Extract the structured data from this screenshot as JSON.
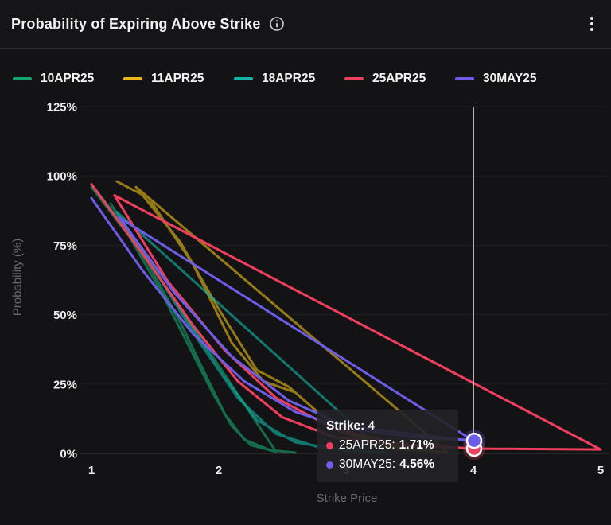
{
  "header": {
    "title": "Probability of Expiring Above Strike",
    "icons": {
      "info": "info-circle",
      "menu": "kebab-vertical"
    }
  },
  "chart_data": {
    "type": "line",
    "title": "Probability of Expiring Above Strike",
    "xlabel": "Strike Price",
    "ylabel": "Probability (%)",
    "xlim": [
      1,
      5
    ],
    "ylim": [
      0,
      125
    ],
    "xticks": [
      1,
      2,
      3,
      4,
      5
    ],
    "yticks": [
      0,
      25,
      50,
      75,
      100,
      125
    ],
    "ytick_suffix": "%",
    "grid": "horizontal",
    "legend_position": "top",
    "colors": {
      "grid": "#202024",
      "zero_line": "#3c3c40",
      "crosshair": "#e9e9e9",
      "tick_text": "#ececec"
    },
    "series": [
      {
        "name": "10APR25",
        "color": "#15a36c",
        "dim": true,
        "points": [
          [
            1,
            96
          ],
          [
            1.3,
            78
          ],
          [
            1.55,
            58
          ],
          [
            1.75,
            40
          ],
          [
            1.95,
            22
          ],
          [
            2.1,
            10
          ],
          [
            2.25,
            3
          ],
          [
            2.45,
            0.6
          ],
          [
            1.15,
            90
          ],
          [
            1.45,
            68
          ],
          [
            1.7,
            47
          ],
          [
            1.9,
            28
          ],
          [
            2.05,
            14
          ],
          [
            2.2,
            5
          ],
          [
            2.4,
            1.2
          ],
          [
            2.6,
            0.3
          ]
        ]
      },
      {
        "name": "11APR25",
        "color": "#e6ba17",
        "dim": true,
        "points": [
          [
            1.2,
            98
          ],
          [
            1.45,
            92
          ],
          [
            1.8,
            68
          ],
          [
            2.1,
            40
          ],
          [
            2.35,
            26
          ],
          [
            2.6,
            22
          ],
          [
            2.95,
            8
          ],
          [
            3.4,
            1.5
          ],
          [
            3.8,
            0.4
          ],
          [
            1.35,
            96
          ],
          [
            1.7,
            76
          ],
          [
            2,
            52
          ],
          [
            2.3,
            30
          ],
          [
            2.55,
            24
          ],
          [
            2.85,
            12
          ],
          [
            3.2,
            4
          ],
          [
            3.6,
            0.8
          ]
        ]
      },
      {
        "name": "18APR25",
        "color": "#12b5a5",
        "dim": true,
        "points": [
          [
            1,
            97
          ],
          [
            1.35,
            76
          ],
          [
            1.7,
            52
          ],
          [
            2,
            30
          ],
          [
            2.3,
            12
          ],
          [
            2.6,
            4
          ],
          [
            3,
            1
          ],
          [
            3.3,
            0.4
          ],
          [
            1.2,
            87
          ],
          [
            1.55,
            62
          ],
          [
            1.85,
            40
          ],
          [
            2.15,
            20
          ],
          [
            2.45,
            7
          ],
          [
            2.8,
            2
          ],
          [
            3.2,
            0.6
          ]
        ]
      },
      {
        "name": "25APR25",
        "color": "#ef3e5e",
        "dim": false,
        "points": [
          [
            1,
            97
          ],
          [
            1.4,
            72
          ],
          [
            1.8,
            46
          ],
          [
            2.15,
            26
          ],
          [
            2.5,
            13
          ],
          [
            2.9,
            6
          ],
          [
            3.4,
            3
          ],
          [
            4,
            1.71
          ],
          [
            5,
            1.4
          ],
          [
            1.18,
            93
          ],
          [
            1.6,
            62
          ],
          [
            2.05,
            37
          ],
          [
            2.45,
            20
          ],
          [
            2.9,
            9
          ],
          [
            3.4,
            3.5
          ],
          [
            4,
            1.71
          ]
        ]
      },
      {
        "name": "30MAY25",
        "color": "#6d5ce8",
        "dim": false,
        "points": [
          [
            1,
            92
          ],
          [
            1.4,
            66
          ],
          [
            1.8,
            43
          ],
          [
            2.2,
            26
          ],
          [
            2.6,
            15
          ],
          [
            3,
            9
          ],
          [
            3.5,
            6
          ],
          [
            4,
            4.56
          ],
          [
            1.22,
            85
          ],
          [
            1.65,
            58
          ],
          [
            2.1,
            35
          ],
          [
            2.55,
            19
          ],
          [
            3,
            10
          ],
          [
            3.6,
            6.5
          ],
          [
            4,
            4.56
          ]
        ]
      }
    ],
    "crosshair": {
      "x": 4,
      "markers": [
        {
          "series": "30MAY25",
          "value": 4.56
        },
        {
          "series": "25APR25",
          "value": 1.71
        }
      ]
    },
    "tooltip": {
      "label": "Strike:",
      "x_value": "4",
      "rows": [
        {
          "series": "25APR25",
          "value": "1.71%"
        },
        {
          "series": "30MAY25",
          "value": "4.56%"
        }
      ]
    }
  }
}
